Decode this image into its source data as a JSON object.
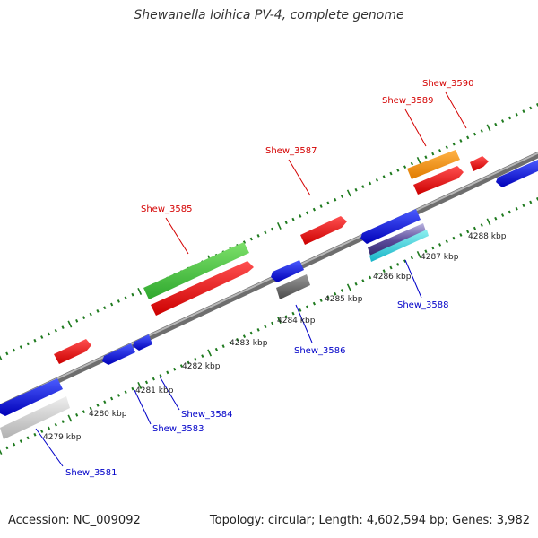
{
  "header": {
    "title": "Shewanella loihica PV-4, complete genome"
  },
  "footer": {
    "accession": "Accession: NC_009092",
    "summary": "Topology: circular; Length: 4,602,594 bp; Genes: 3,982"
  },
  "colors": {
    "backbone": "#8a8a8a",
    "tick": "#1e7a1e",
    "label_forward": "#d40000",
    "label_reverse": "#0000c8"
  },
  "scale_labels": [
    "4279 kbp",
    "4280 kbp",
    "4281 kbp",
    "4282 kbp",
    "4283 kbp",
    "4284 kbp",
    "4285 kbp",
    "4286 kbp",
    "4287 kbp",
    "4288 kbp"
  ],
  "gene_labels": [
    {
      "name": "Shew_3581",
      "strand": "reverse"
    },
    {
      "name": "Shew_3583",
      "strand": "reverse"
    },
    {
      "name": "Shew_3584",
      "strand": "reverse"
    },
    {
      "name": "Shew_3585",
      "strand": "forward"
    },
    {
      "name": "Shew_3586",
      "strand": "reverse"
    },
    {
      "name": "Shew_3587",
      "strand": "forward"
    },
    {
      "name": "Shew_3588",
      "strand": "reverse"
    },
    {
      "name": "Shew_3589",
      "strand": "forward"
    },
    {
      "name": "Shew_3590",
      "strand": "forward"
    }
  ],
  "features": [
    {
      "id": "f1",
      "color": "red"
    },
    {
      "id": "f2",
      "color": "green"
    },
    {
      "id": "f3",
      "color": "red"
    },
    {
      "id": "f4",
      "color": "red"
    },
    {
      "id": "f5",
      "color": "orange"
    },
    {
      "id": "f6",
      "color": "red"
    },
    {
      "id": "f7",
      "color": "red"
    },
    {
      "id": "r1",
      "color": "blue"
    },
    {
      "id": "r2",
      "color": "lightgray"
    },
    {
      "id": "r3",
      "color": "blue"
    },
    {
      "id": "r4",
      "color": "blue"
    },
    {
      "id": "r5",
      "color": "blue"
    },
    {
      "id": "r6",
      "color": "darkgray"
    },
    {
      "id": "r7",
      "color": "blue"
    },
    {
      "id": "r8",
      "color": "purple"
    },
    {
      "id": "r9",
      "color": "cyan"
    },
    {
      "id": "r10",
      "color": "blue"
    }
  ]
}
